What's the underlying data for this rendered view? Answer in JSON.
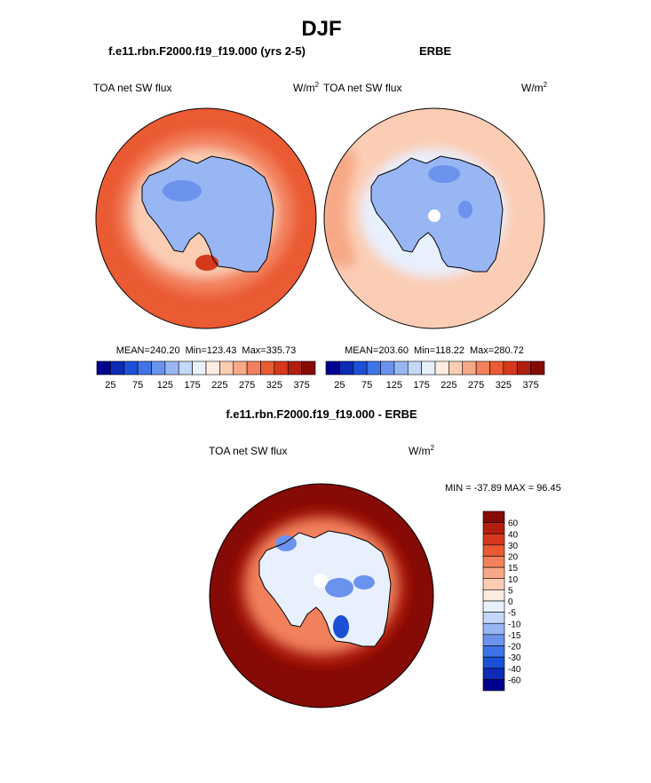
{
  "chart_data": {
    "type": "polar-contour-map",
    "title": "DJF",
    "panels": [
      {
        "id": "model",
        "case": "f.e11.rbn.F2000.f19_f19.000 (yrs 2-5)",
        "variable": "TOA net SW flux",
        "units_base": "W/m",
        "units_exp": "2",
        "stats": {
          "mean_label": "MEAN=",
          "mean": "240.20",
          "min_label": "Min=",
          "min": "123.43",
          "max_label": "Max=",
          "max": "335.73"
        },
        "colorbar_ticks": [
          "25",
          "75",
          "125",
          "175",
          "225",
          "275",
          "325",
          "375"
        ]
      },
      {
        "id": "obs",
        "case": "ERBE",
        "variable": "TOA net SW flux",
        "units_base": "W/m",
        "units_exp": "2",
        "stats": {
          "mean_label": "MEAN=",
          "mean": "203.60",
          "min_label": "Min=",
          "min": "118.22",
          "max_label": "Max=",
          "max": "280.72"
        },
        "colorbar_ticks": [
          "25",
          "75",
          "125",
          "175",
          "225",
          "275",
          "325",
          "375"
        ]
      },
      {
        "id": "diff",
        "case": "f.e11.rbn.F2000.f19_f19.000 - ERBE",
        "variable": "TOA net SW flux",
        "units_base": "W/m",
        "units_exp": "2",
        "stats": {
          "min_label": "MIN =",
          "min": "-37.89",
          "max_label": "MAX =",
          "max": "96.45"
        },
        "colorbar_ticks": [
          "60",
          "40",
          "30",
          "20",
          "15",
          "10",
          "5",
          "0",
          "-5",
          "-10",
          "-15",
          "-20",
          "-30",
          "-40",
          "-60"
        ]
      }
    ],
    "abs_colormap": [
      "#00008f",
      "#0d2bb5",
      "#1b4fd6",
      "#3f74e8",
      "#6b93ee",
      "#98b6f4",
      "#c3d7fa",
      "#e8f0fe",
      "#fdece1",
      "#fbcdb4",
      "#f7a987",
      "#f2805c",
      "#ea5a33",
      "#d6381c",
      "#b21e0e",
      "#860a05"
    ],
    "diff_colormap": [
      "#860a05",
      "#b21e0e",
      "#d6381c",
      "#ea5a33",
      "#f2805c",
      "#f7a987",
      "#fbcdb4",
      "#fdece1",
      "#e8f0fe",
      "#c3d7fa",
      "#98b6f4",
      "#6b93ee",
      "#3f74e8",
      "#1b4fd6",
      "#0d2bb5",
      "#00008f"
    ],
    "model_fill": {
      "outer": 318,
      "mid": 290,
      "inner_ring": 240,
      "continent": 135,
      "dark_patch": 122,
      "peninsula_anomaly": 345
    },
    "obs_fill": {
      "outer": 240,
      "mid": 225,
      "inner_ring": 185,
      "continent": 140,
      "dark_patch": 120,
      "ocean_west": 260
    },
    "diff_fill": {
      "outer": 90,
      "mid": 45,
      "coastal": 18,
      "interior": -2,
      "neg_patch": -20,
      "strong_neg": -35
    }
  }
}
